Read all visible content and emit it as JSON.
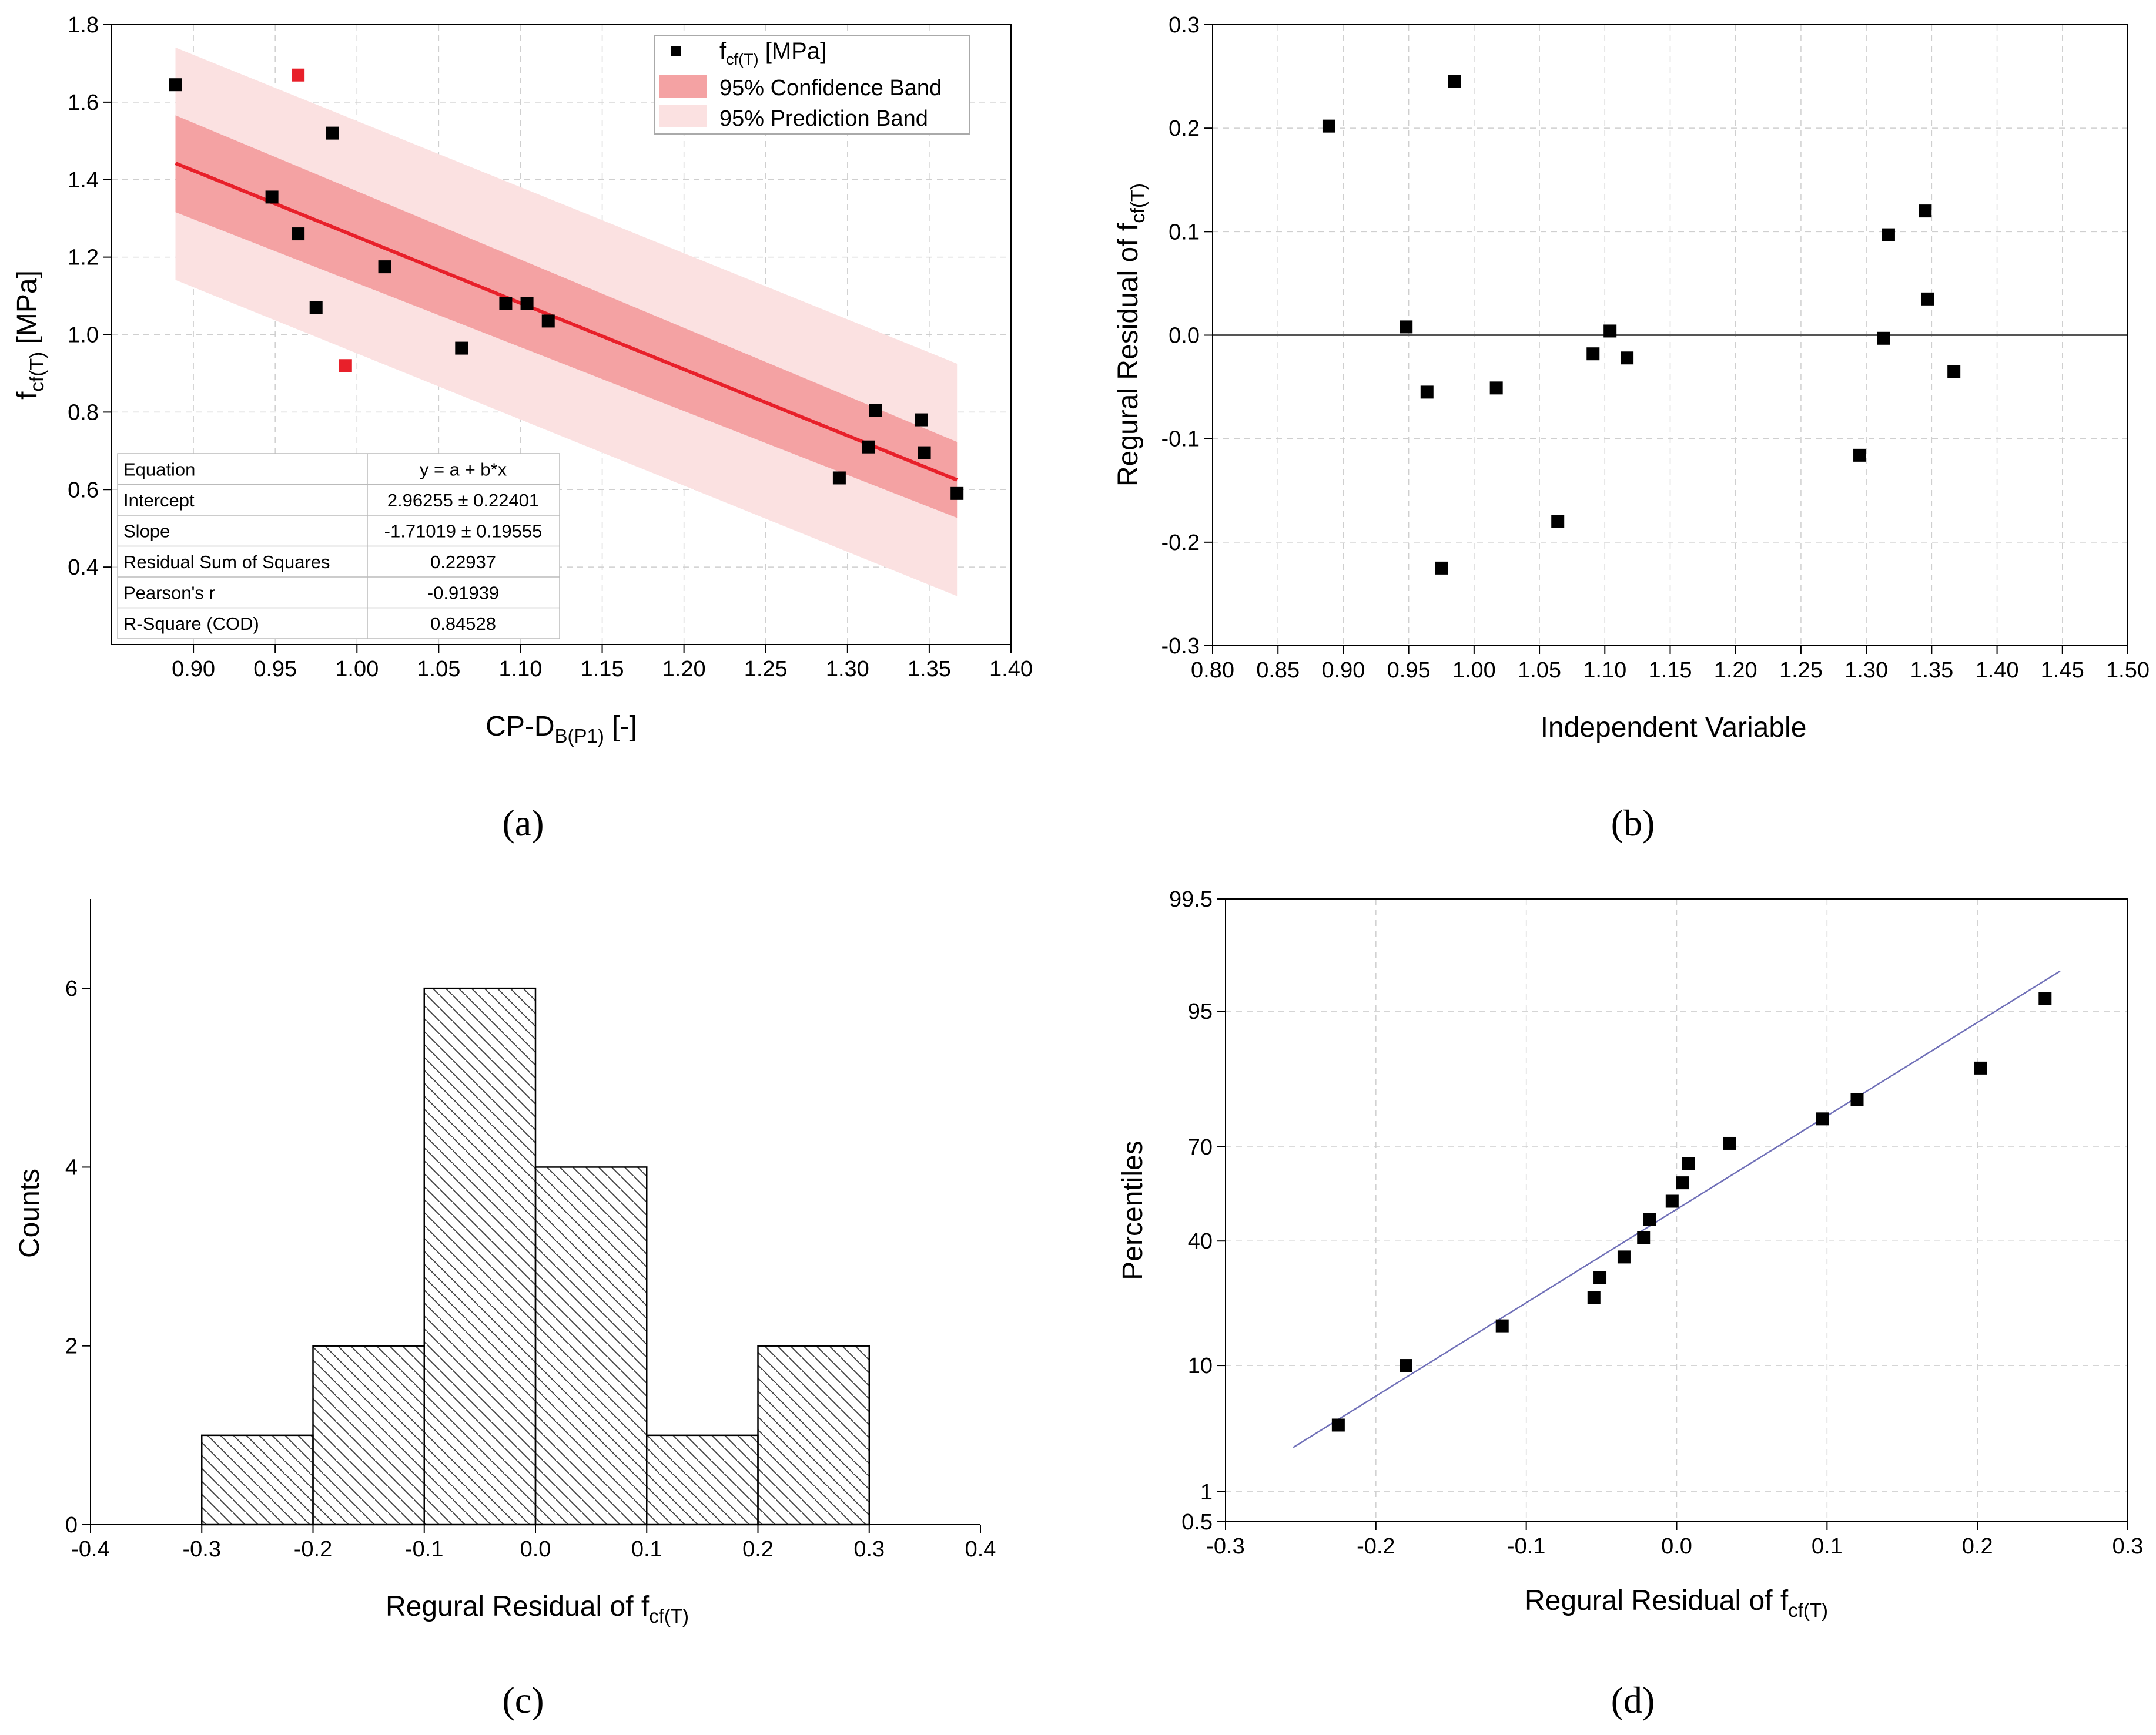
{
  "chart_data": [
    {
      "type": "scatter",
      "panel_label": "(a)",
      "xlabel_main": "CP-D",
      "xlabel_sub": "B(P1)",
      "xlabel_tail": " [-]",
      "ylabel_main": "f",
      "ylabel_sub": "cf(T)",
      "ylabel_tail": " [MPa]",
      "xlim": [
        0.85,
        1.4
      ],
      "ylim": [
        0.2,
        1.8
      ],
      "xticks": [
        0.9,
        0.95,
        1.0,
        1.05,
        1.1,
        1.15,
        1.2,
        1.25,
        1.3,
        1.35,
        1.4
      ],
      "xtick_labels": [
        "0.90",
        "0.95",
        "1.00",
        "1.05",
        "1.10",
        "1.15",
        "1.20",
        "1.25",
        "1.30",
        "1.35",
        "1.40"
      ],
      "yticks": [
        0.4,
        0.6,
        0.8,
        1.0,
        1.2,
        1.4,
        1.6,
        1.8
      ],
      "ytick_labels": [
        "0.4",
        "0.6",
        "0.8",
        "1.0",
        "1.2",
        "1.4",
        "1.6",
        "1.8"
      ],
      "points": [
        [
          0.889,
          1.645
        ],
        [
          0.948,
          1.355
        ],
        [
          0.964,
          1.26
        ],
        [
          0.975,
          1.07
        ],
        [
          0.985,
          1.52
        ],
        [
          1.017,
          1.175
        ],
        [
          1.064,
          0.965
        ],
        [
          1.091,
          1.08
        ],
        [
          1.104,
          1.08
        ],
        [
          1.117,
          1.035
        ],
        [
          1.295,
          0.63
        ],
        [
          1.313,
          0.71
        ],
        [
          1.317,
          0.805
        ],
        [
          1.345,
          0.78
        ],
        [
          1.347,
          0.695
        ],
        [
          1.367,
          0.59
        ]
      ],
      "outlier_points": [
        [
          0.964,
          1.67
        ],
        [
          0.993,
          0.92
        ]
      ],
      "fit": {
        "intercept": 2.96255,
        "slope": -1.71019,
        "x_range": [
          0.889,
          1.367
        ]
      },
      "confidence_band": {
        "x": [
          0.889,
          1.367
        ],
        "lower": [
          1.316,
          0.527
        ],
        "upper": [
          1.566,
          0.723
        ]
      },
      "prediction_band": {
        "x": [
          0.889,
          1.367
        ],
        "lower": [
          1.141,
          0.325
        ],
        "upper": [
          1.741,
          0.925
        ]
      },
      "legend": [
        {
          "sub": "cf(T)",
          "main": "f",
          "tail": " [MPa]"
        },
        {
          "label": "95% Confidence Band"
        },
        {
          "label": "95% Prediction Band"
        }
      ],
      "stats_table": [
        [
          "Equation",
          "y = a + b*x"
        ],
        [
          "Intercept",
          "2.96255 ± 0.22401"
        ],
        [
          "Slope",
          "-1.71019 ± 0.19555"
        ],
        [
          "Residual Sum of Squares",
          "0.22937"
        ],
        [
          "Pearson's r",
          "-0.91939"
        ],
        [
          "R-Square (COD)",
          "0.84528"
        ]
      ],
      "colors": {
        "point": "#000000",
        "outlier": "#e8202a",
        "fit": "#e8202a",
        "confidence": "#f4a2a3",
        "prediction": "#fbe1e1"
      },
      "legend_position": "top-right",
      "grid": true
    },
    {
      "type": "scatter",
      "panel_label": "(b)",
      "xlabel": "Independent Variable",
      "ylabel_main": "Regural Residual of f",
      "ylabel_sub": "cf(T)",
      "xlim": [
        0.8,
        1.5
      ],
      "ylim": [
        -0.3,
        0.3
      ],
      "xticks": [
        0.8,
        0.85,
        0.9,
        0.95,
        1.0,
        1.05,
        1.1,
        1.15,
        1.2,
        1.25,
        1.3,
        1.35,
        1.4,
        1.45,
        1.5
      ],
      "xtick_labels": [
        "0.80",
        "0.85",
        "0.90",
        "0.95",
        "1.00",
        "1.05",
        "1.10",
        "1.15",
        "1.20",
        "1.25",
        "1.30",
        "1.35",
        "1.40",
        "1.45",
        "1.50"
      ],
      "yticks": [
        -0.3,
        -0.2,
        -0.1,
        0.0,
        0.1,
        0.2,
        0.3
      ],
      "ytick_labels": [
        "-0.3",
        "-0.2",
        "-0.1",
        "0.0",
        "0.1",
        "0.2",
        "0.3"
      ],
      "points": [
        [
          0.889,
          0.202
        ],
        [
          0.948,
          0.008
        ],
        [
          0.964,
          -0.055
        ],
        [
          0.975,
          -0.225
        ],
        [
          0.985,
          0.245
        ],
        [
          1.017,
          -0.051
        ],
        [
          1.064,
          -0.18
        ],
        [
          1.091,
          -0.018
        ],
        [
          1.104,
          0.004
        ],
        [
          1.117,
          -0.022
        ],
        [
          1.295,
          -0.116
        ],
        [
          1.313,
          -0.003
        ],
        [
          1.317,
          0.097
        ],
        [
          1.345,
          0.12
        ],
        [
          1.347,
          0.035
        ],
        [
          1.367,
          -0.035
        ]
      ],
      "zero_line": 0.0,
      "grid": true
    },
    {
      "type": "bar",
      "panel_label": "(c)",
      "xlabel_main": "Regural Residual of f",
      "xlabel_sub": "cf(T)",
      "ylabel": "Counts",
      "xlim": [
        -0.4,
        0.4
      ],
      "ylim": [
        0,
        7
      ],
      "xticks": [
        -0.4,
        -0.3,
        -0.2,
        -0.1,
        0.0,
        0.1,
        0.2,
        0.3,
        0.4
      ],
      "xtick_labels": [
        "-0.4",
        "-0.3",
        "-0.2",
        "-0.1",
        "0.0",
        "0.1",
        "0.2",
        "0.3",
        "0.4"
      ],
      "yticks": [
        0,
        2,
        4,
        6
      ],
      "ytick_labels": [
        "0",
        "2",
        "4",
        "6"
      ],
      "bins": [
        [
          -0.3,
          -0.2
        ],
        [
          -0.2,
          -0.1
        ],
        [
          -0.1,
          0.0
        ],
        [
          0.0,
          0.1
        ],
        [
          0.1,
          0.2
        ],
        [
          0.2,
          0.3
        ]
      ],
      "values": [
        1,
        2,
        6,
        4,
        1,
        2
      ],
      "fill": "hatched",
      "grid": false
    },
    {
      "type": "scatter",
      "panel_label": "(d)",
      "xlabel_main": "Regural Residual of f",
      "xlabel_sub": "cf(T)",
      "ylabel": "Percentiles",
      "xlim": [
        -0.3,
        0.3
      ],
      "y_scale": "probability",
      "xticks": [
        -0.3,
        -0.2,
        -0.1,
        0.0,
        0.1,
        0.2,
        0.3
      ],
      "xtick_labels": [
        "-0.3",
        "-0.2",
        "-0.1",
        "0.0",
        "0.1",
        "0.2",
        "0.3"
      ],
      "yticks": [
        0.5,
        1,
        10,
        40,
        70,
        95,
        99.5
      ],
      "ytick_labels": [
        "0.5",
        "1",
        "10",
        "40",
        "70",
        "95",
        "99.5"
      ],
      "points": [
        [
          -0.225,
          3.8
        ],
        [
          -0.18,
          10.0
        ],
        [
          -0.116,
          17.0
        ],
        [
          -0.055,
          23.5
        ],
        [
          -0.051,
          29.0
        ],
        [
          -0.035,
          35.0
        ],
        [
          -0.022,
          41.0
        ],
        [
          -0.018,
          47.0
        ],
        [
          -0.003,
          53.0
        ],
        [
          0.004,
          59.0
        ],
        [
          0.008,
          65.0
        ],
        [
          0.035,
          71.0
        ],
        [
          0.097,
          77.5
        ],
        [
          0.12,
          82.0
        ],
        [
          0.202,
          88.0
        ],
        [
          0.245,
          96.0
        ]
      ],
      "reference_line": {
        "x": [
          -0.255,
          0.255
        ],
        "y": [
          2.5,
          97.6
        ]
      },
      "line_color": "#7070b8",
      "grid": true
    }
  ]
}
